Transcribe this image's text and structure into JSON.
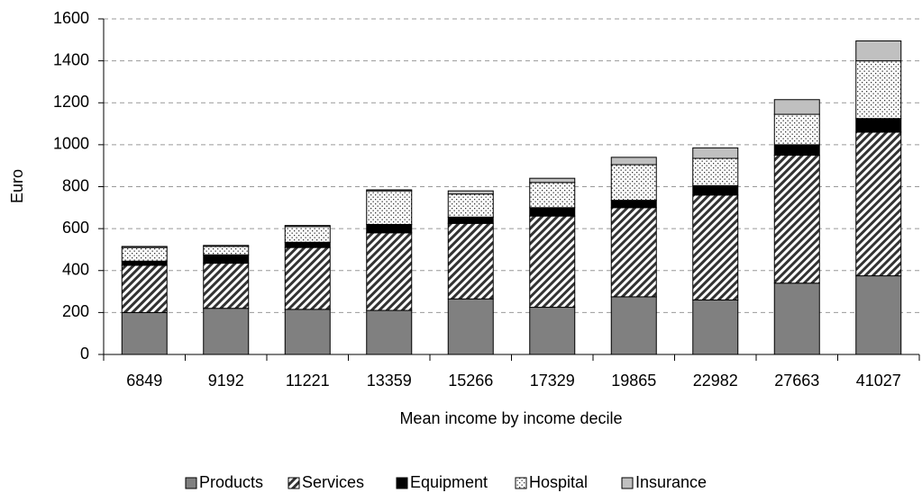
{
  "chart_data": {
    "type": "stacked_bar",
    "x_label": "Mean income by income decile",
    "y_label": "Euro",
    "categories": [
      "6849",
      "9192",
      "11221",
      "13359",
      "15266",
      "17329",
      "19865",
      "22982",
      "27663",
      "41027"
    ],
    "series": [
      {
        "name": "Products",
        "color": "#808080",
        "fill_pattern": "solid",
        "values": [
          200,
          220,
          215,
          210,
          265,
          225,
          275,
          260,
          340,
          375
        ]
      },
      {
        "name": "Services",
        "color": "#333333",
        "fill_pattern": "hatch",
        "values": [
          225,
          215,
          295,
          370,
          360,
          435,
          425,
          500,
          610,
          685
        ]
      },
      {
        "name": "Equipment",
        "color": "#000000",
        "fill_pattern": "solid",
        "values": [
          20,
          40,
          25,
          40,
          30,
          40,
          35,
          45,
          50,
          65
        ]
      },
      {
        "name": "Hospital",
        "color": "#333333",
        "fill_pattern": "dots",
        "values": [
          65,
          40,
          75,
          160,
          110,
          120,
          170,
          130,
          145,
          275
        ]
      },
      {
        "name": "Insurance",
        "color": "#c0c0c0",
        "fill_pattern": "solid",
        "values": [
          5,
          5,
          5,
          5,
          15,
          20,
          35,
          50,
          70,
          95
        ]
      }
    ],
    "ylim": [
      0,
      1600
    ],
    "yticks": [
      0,
      200,
      400,
      600,
      800,
      1000,
      1200,
      1400,
      1600
    ],
    "grid": true,
    "legend": "bottom"
  }
}
